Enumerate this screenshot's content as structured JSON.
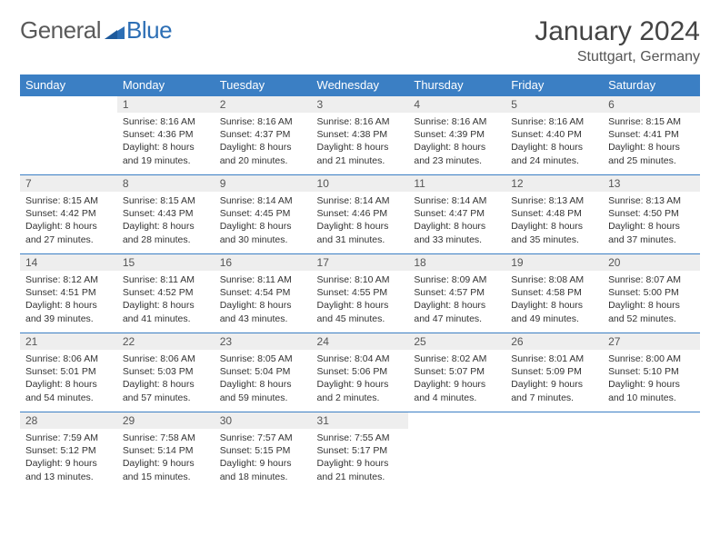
{
  "brand": {
    "part1": "General",
    "part2": "Blue"
  },
  "title": "January 2024",
  "location": "Stuttgart, Germany",
  "colors": {
    "header_bg": "#3b7fc4",
    "header_fg": "#ffffff",
    "daynum_bg": "#eeeeee",
    "row_divider": "#3b7fc4",
    "logo_blue": "#2d6fb5",
    "logo_gray": "#5a5a5a",
    "text": "#333333"
  },
  "daysOfWeek": [
    "Sunday",
    "Monday",
    "Tuesday",
    "Wednesday",
    "Thursday",
    "Friday",
    "Saturday"
  ],
  "layout": {
    "cols": 7,
    "rows": 5,
    "start_offset": 1,
    "days_in_month": 31
  },
  "days": [
    {
      "n": 1,
      "sunrise": "8:16 AM",
      "sunset": "4:36 PM",
      "daylight": "8 hours and 19 minutes."
    },
    {
      "n": 2,
      "sunrise": "8:16 AM",
      "sunset": "4:37 PM",
      "daylight": "8 hours and 20 minutes."
    },
    {
      "n": 3,
      "sunrise": "8:16 AM",
      "sunset": "4:38 PM",
      "daylight": "8 hours and 21 minutes."
    },
    {
      "n": 4,
      "sunrise": "8:16 AM",
      "sunset": "4:39 PM",
      "daylight": "8 hours and 23 minutes."
    },
    {
      "n": 5,
      "sunrise": "8:16 AM",
      "sunset": "4:40 PM",
      "daylight": "8 hours and 24 minutes."
    },
    {
      "n": 6,
      "sunrise": "8:15 AM",
      "sunset": "4:41 PM",
      "daylight": "8 hours and 25 minutes."
    },
    {
      "n": 7,
      "sunrise": "8:15 AM",
      "sunset": "4:42 PM",
      "daylight": "8 hours and 27 minutes."
    },
    {
      "n": 8,
      "sunrise": "8:15 AM",
      "sunset": "4:43 PM",
      "daylight": "8 hours and 28 minutes."
    },
    {
      "n": 9,
      "sunrise": "8:14 AM",
      "sunset": "4:45 PM",
      "daylight": "8 hours and 30 minutes."
    },
    {
      "n": 10,
      "sunrise": "8:14 AM",
      "sunset": "4:46 PM",
      "daylight": "8 hours and 31 minutes."
    },
    {
      "n": 11,
      "sunrise": "8:14 AM",
      "sunset": "4:47 PM",
      "daylight": "8 hours and 33 minutes."
    },
    {
      "n": 12,
      "sunrise": "8:13 AM",
      "sunset": "4:48 PM",
      "daylight": "8 hours and 35 minutes."
    },
    {
      "n": 13,
      "sunrise": "8:13 AM",
      "sunset": "4:50 PM",
      "daylight": "8 hours and 37 minutes."
    },
    {
      "n": 14,
      "sunrise": "8:12 AM",
      "sunset": "4:51 PM",
      "daylight": "8 hours and 39 minutes."
    },
    {
      "n": 15,
      "sunrise": "8:11 AM",
      "sunset": "4:52 PM",
      "daylight": "8 hours and 41 minutes."
    },
    {
      "n": 16,
      "sunrise": "8:11 AM",
      "sunset": "4:54 PM",
      "daylight": "8 hours and 43 minutes."
    },
    {
      "n": 17,
      "sunrise": "8:10 AM",
      "sunset": "4:55 PM",
      "daylight": "8 hours and 45 minutes."
    },
    {
      "n": 18,
      "sunrise": "8:09 AM",
      "sunset": "4:57 PM",
      "daylight": "8 hours and 47 minutes."
    },
    {
      "n": 19,
      "sunrise": "8:08 AM",
      "sunset": "4:58 PM",
      "daylight": "8 hours and 49 minutes."
    },
    {
      "n": 20,
      "sunrise": "8:07 AM",
      "sunset": "5:00 PM",
      "daylight": "8 hours and 52 minutes."
    },
    {
      "n": 21,
      "sunrise": "8:06 AM",
      "sunset": "5:01 PM",
      "daylight": "8 hours and 54 minutes."
    },
    {
      "n": 22,
      "sunrise": "8:06 AM",
      "sunset": "5:03 PM",
      "daylight": "8 hours and 57 minutes."
    },
    {
      "n": 23,
      "sunrise": "8:05 AM",
      "sunset": "5:04 PM",
      "daylight": "8 hours and 59 minutes."
    },
    {
      "n": 24,
      "sunrise": "8:04 AM",
      "sunset": "5:06 PM",
      "daylight": "9 hours and 2 minutes."
    },
    {
      "n": 25,
      "sunrise": "8:02 AM",
      "sunset": "5:07 PM",
      "daylight": "9 hours and 4 minutes."
    },
    {
      "n": 26,
      "sunrise": "8:01 AM",
      "sunset": "5:09 PM",
      "daylight": "9 hours and 7 minutes."
    },
    {
      "n": 27,
      "sunrise": "8:00 AM",
      "sunset": "5:10 PM",
      "daylight": "9 hours and 10 minutes."
    },
    {
      "n": 28,
      "sunrise": "7:59 AM",
      "sunset": "5:12 PM",
      "daylight": "9 hours and 13 minutes."
    },
    {
      "n": 29,
      "sunrise": "7:58 AM",
      "sunset": "5:14 PM",
      "daylight": "9 hours and 15 minutes."
    },
    {
      "n": 30,
      "sunrise": "7:57 AM",
      "sunset": "5:15 PM",
      "daylight": "9 hours and 18 minutes."
    },
    {
      "n": 31,
      "sunrise": "7:55 AM",
      "sunset": "5:17 PM",
      "daylight": "9 hours and 21 minutes."
    }
  ],
  "labels": {
    "sunrise": "Sunrise:",
    "sunset": "Sunset:",
    "daylight": "Daylight:"
  }
}
